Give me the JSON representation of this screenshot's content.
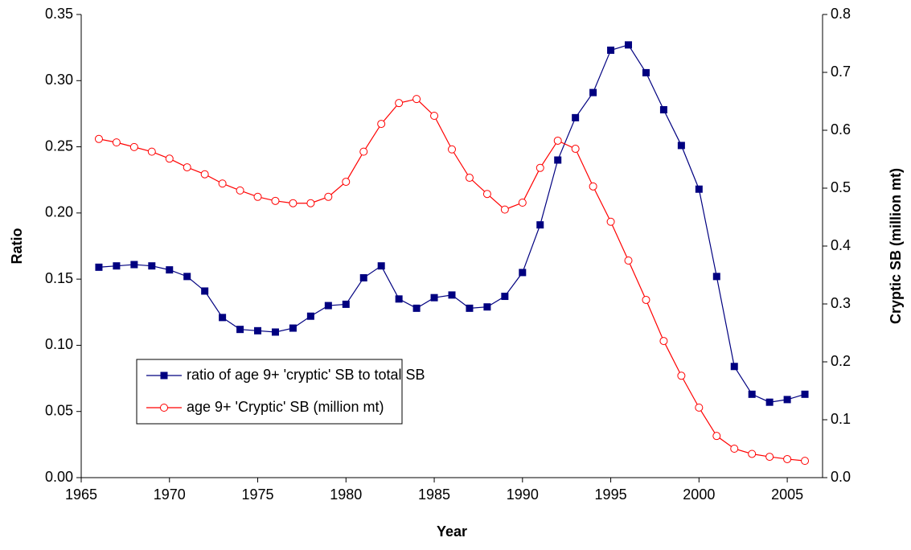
{
  "chart_data": {
    "type": "line",
    "x_label": "Year",
    "y_label": "Ratio",
    "y2_label": "Cryptic SB (million mt)",
    "x": [
      1966,
      1967,
      1968,
      1969,
      1970,
      1971,
      1972,
      1973,
      1974,
      1975,
      1976,
      1977,
      1978,
      1979,
      1980,
      1981,
      1982,
      1983,
      1984,
      1985,
      1986,
      1987,
      1988,
      1989,
      1990,
      1991,
      1992,
      1993,
      1994,
      1995,
      1996,
      1997,
      1998,
      1999,
      2000,
      2001,
      2002,
      2003,
      2004,
      2005,
      2006
    ],
    "xlim": [
      1965,
      2007
    ],
    "xticks": [
      1965,
      1970,
      1975,
      1980,
      1985,
      1990,
      1995,
      2000,
      2005
    ],
    "ylim": [
      0,
      0.35
    ],
    "yticks": [
      {
        "value": 0,
        "label": "0.00"
      },
      {
        "value": 0.05,
        "label": "0.05"
      },
      {
        "value": 0.1,
        "label": "0.10"
      },
      {
        "value": 0.15,
        "label": "0.15"
      },
      {
        "value": 0.2,
        "label": "0.20"
      },
      {
        "value": 0.25,
        "label": "0.25"
      },
      {
        "value": 0.3,
        "label": "0.30"
      },
      {
        "value": 0.35,
        "label": "0.35"
      }
    ],
    "y2lim": [
      0,
      0.8
    ],
    "y2ticks": [
      {
        "value": 0,
        "label": "0.0"
      },
      {
        "value": 0.1,
        "label": "0.1"
      },
      {
        "value": 0.2,
        "label": "0.2"
      },
      {
        "value": 0.3,
        "label": "0.3"
      },
      {
        "value": 0.4,
        "label": "0.4"
      },
      {
        "value": 0.5,
        "label": "0.5"
      },
      {
        "value": 0.6,
        "label": "0.6"
      },
      {
        "value": 0.7,
        "label": "0.7"
      },
      {
        "value": 0.8,
        "label": "0.8"
      }
    ],
    "series": [
      {
        "name": "ratio of age 9+ 'cryptic' SB to total SB",
        "color": "#000080",
        "marker": "square",
        "values": [
          0.159,
          0.16,
          0.161,
          0.16,
          0.157,
          0.152,
          0.141,
          0.121,
          0.112,
          0.111,
          0.11,
          0.113,
          0.122,
          0.13,
          0.131,
          0.151,
          0.16,
          0.135,
          0.128,
          0.136,
          0.138,
          0.128,
          0.129,
          0.137,
          0.155,
          0.191,
          0.24,
          0.272,
          0.291,
          0.323,
          0.327,
          0.306,
          0.278,
          0.251,
          0.218,
          0.152,
          0.084,
          0.063,
          0.057,
          0.059,
          0.063
        ]
      },
      {
        "name": "age 9+ 'Cryptic' SB (million mt)",
        "color": "#ff0000",
        "marker": "circle",
        "axis": "y2",
        "values": [
          0.585,
          0.579,
          0.571,
          0.563,
          0.551,
          0.536,
          0.524,
          0.508,
          0.496,
          0.485,
          0.478,
          0.474,
          0.474,
          0.485,
          0.511,
          0.563,
          0.611,
          0.647,
          0.654,
          0.625,
          0.567,
          0.518,
          0.49,
          0.463,
          0.475,
          0.535,
          0.582,
          0.568,
          0.503,
          0.442,
          0.375,
          0.307,
          0.236,
          0.176,
          0.121,
          0.072,
          0.05,
          0.041,
          0.036,
          0.032,
          0.029
        ]
      }
    ]
  }
}
